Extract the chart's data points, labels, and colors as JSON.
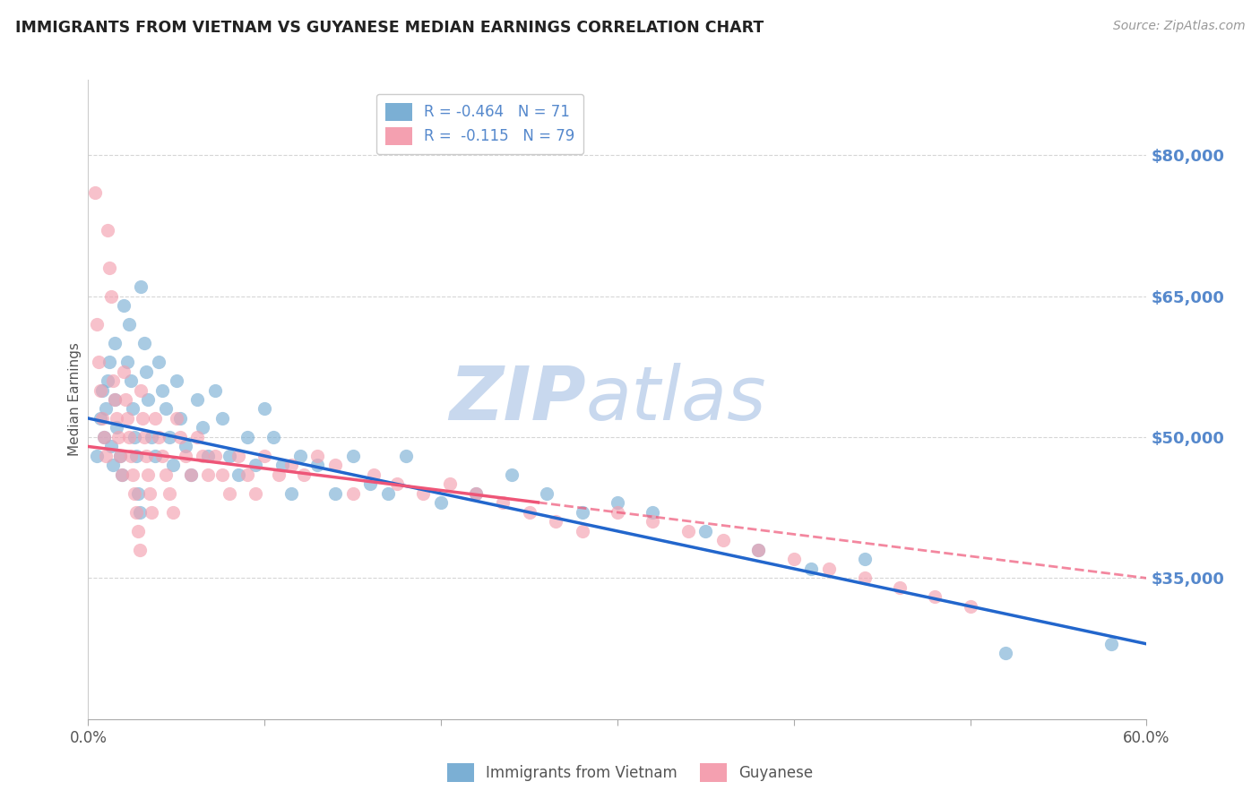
{
  "title": "IMMIGRANTS FROM VIETNAM VS GUYANESE MEDIAN EARNINGS CORRELATION CHART",
  "source": "Source: ZipAtlas.com",
  "ylabel": "Median Earnings",
  "right_yticks": [
    35000,
    50000,
    65000,
    80000
  ],
  "right_yticklabels": [
    "$35,000",
    "$50,000",
    "$65,000",
    "$80,000"
  ],
  "ylim": [
    20000,
    88000
  ],
  "xlim": [
    0.0,
    0.6
  ],
  "legend_bottom": [
    "Immigrants from Vietnam",
    "Guyanese"
  ],
  "blue_color": "#7bafd4",
  "pink_color": "#f4a0b0",
  "trendline_blue_color": "#2266cc",
  "trendline_pink_color": "#ee5577",
  "watermark_zip": "ZIP",
  "watermark_atlas": "atlas",
  "watermark_color": "#c8d8ee",
  "grid_color": "#cccccc",
  "title_color": "#222222",
  "axis_label_color": "#555555",
  "right_axis_color": "#5588cc",
  "legend_label_color": "#5588cc",
  "vietnam_x": [
    0.005,
    0.007,
    0.008,
    0.009,
    0.01,
    0.011,
    0.012,
    0.013,
    0.014,
    0.015,
    0.015,
    0.016,
    0.018,
    0.019,
    0.02,
    0.022,
    0.023,
    0.024,
    0.025,
    0.026,
    0.027,
    0.028,
    0.029,
    0.03,
    0.032,
    0.033,
    0.034,
    0.036,
    0.038,
    0.04,
    0.042,
    0.044,
    0.046,
    0.048,
    0.05,
    0.052,
    0.055,
    0.058,
    0.062,
    0.065,
    0.068,
    0.072,
    0.076,
    0.08,
    0.085,
    0.09,
    0.095,
    0.1,
    0.105,
    0.11,
    0.115,
    0.12,
    0.13,
    0.14,
    0.15,
    0.16,
    0.17,
    0.18,
    0.2,
    0.22,
    0.24,
    0.26,
    0.28,
    0.3,
    0.32,
    0.35,
    0.38,
    0.41,
    0.44,
    0.52,
    0.58
  ],
  "vietnam_y": [
    48000,
    52000,
    55000,
    50000,
    53000,
    56000,
    58000,
    49000,
    47000,
    60000,
    54000,
    51000,
    48000,
    46000,
    64000,
    58000,
    62000,
    56000,
    53000,
    50000,
    48000,
    44000,
    42000,
    66000,
    60000,
    57000,
    54000,
    50000,
    48000,
    58000,
    55000,
    53000,
    50000,
    47000,
    56000,
    52000,
    49000,
    46000,
    54000,
    51000,
    48000,
    55000,
    52000,
    48000,
    46000,
    50000,
    47000,
    53000,
    50000,
    47000,
    44000,
    48000,
    47000,
    44000,
    48000,
    45000,
    44000,
    48000,
    43000,
    44000,
    46000,
    44000,
    42000,
    43000,
    42000,
    40000,
    38000,
    36000,
    37000,
    27000,
    28000
  ],
  "guyanese_x": [
    0.004,
    0.005,
    0.006,
    0.007,
    0.008,
    0.009,
    0.01,
    0.011,
    0.012,
    0.013,
    0.014,
    0.015,
    0.016,
    0.017,
    0.018,
    0.019,
    0.02,
    0.021,
    0.022,
    0.023,
    0.024,
    0.025,
    0.026,
    0.027,
    0.028,
    0.029,
    0.03,
    0.031,
    0.032,
    0.033,
    0.034,
    0.035,
    0.036,
    0.038,
    0.04,
    0.042,
    0.044,
    0.046,
    0.048,
    0.05,
    0.052,
    0.055,
    0.058,
    0.062,
    0.065,
    0.068,
    0.072,
    0.076,
    0.08,
    0.085,
    0.09,
    0.095,
    0.1,
    0.108,
    0.115,
    0.122,
    0.13,
    0.14,
    0.15,
    0.162,
    0.175,
    0.19,
    0.205,
    0.22,
    0.235,
    0.25,
    0.265,
    0.28,
    0.3,
    0.32,
    0.34,
    0.36,
    0.38,
    0.4,
    0.42,
    0.44,
    0.46,
    0.48,
    0.5
  ],
  "guyanese_y": [
    76000,
    62000,
    58000,
    55000,
    52000,
    50000,
    48000,
    72000,
    68000,
    65000,
    56000,
    54000,
    52000,
    50000,
    48000,
    46000,
    57000,
    54000,
    52000,
    50000,
    48000,
    46000,
    44000,
    42000,
    40000,
    38000,
    55000,
    52000,
    50000,
    48000,
    46000,
    44000,
    42000,
    52000,
    50000,
    48000,
    46000,
    44000,
    42000,
    52000,
    50000,
    48000,
    46000,
    50000,
    48000,
    46000,
    48000,
    46000,
    44000,
    48000,
    46000,
    44000,
    48000,
    46000,
    47000,
    46000,
    48000,
    47000,
    44000,
    46000,
    45000,
    44000,
    45000,
    44000,
    43000,
    42000,
    41000,
    40000,
    42000,
    41000,
    40000,
    39000,
    38000,
    37000,
    36000,
    35000,
    34000,
    33000,
    32000
  ]
}
